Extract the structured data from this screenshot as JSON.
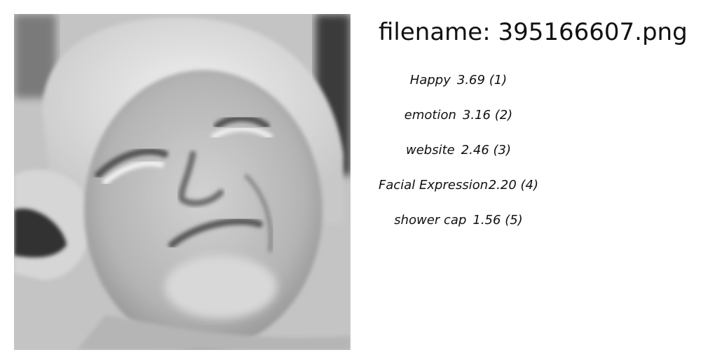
{
  "header": {
    "filename_label": "filename:",
    "filename_value": "395166607.png"
  },
  "photo": {
    "description_icon": "grayscale-portrait-elderly-woman-smiling"
  },
  "labels": [
    {
      "name": "Happy",
      "score": "3.69",
      "rank": "(1)"
    },
    {
      "name": "emotion",
      "score": "3.16",
      "rank": "(2)"
    },
    {
      "name": "website",
      "score": "2.46",
      "rank": "(3)"
    },
    {
      "name": "Facial Expression",
      "score": "2.20",
      "rank": "(4)"
    },
    {
      "name": "shower cap",
      "score": "1.56",
      "rank": "(5)"
    }
  ]
}
